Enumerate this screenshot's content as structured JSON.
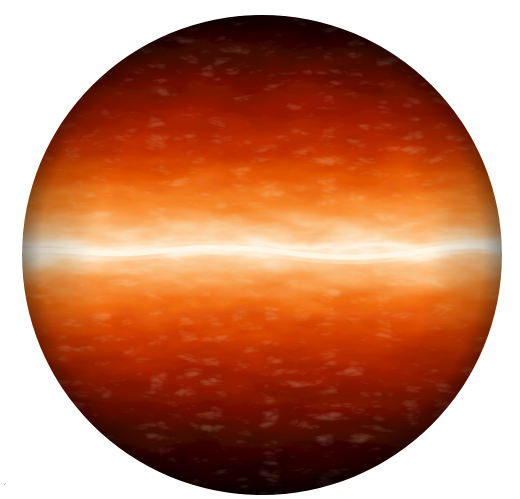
{
  "scene": {
    "subject": "planet-sphere",
    "band_colors": {
      "polar": "#1a0200",
      "dark_red": "#5a0a00",
      "red": "#9b1a00",
      "red_orange": "#c83200",
      "orange": "#e85a05",
      "light_orange": "#f88c30",
      "pale": "#fbc792",
      "equator_white": "#fff6e8"
    },
    "background_color": "#ffffff"
  },
  "corner_mark": {
    "glyph": "´"
  }
}
